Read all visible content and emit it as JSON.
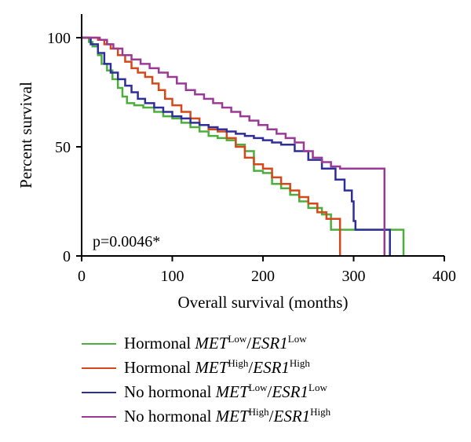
{
  "chart_data": {
    "type": "line",
    "subtype": "kaplan-meier-step",
    "ylabel": "Percent survival",
    "xlabel": "Overall survival (months)",
    "xlim": [
      0,
      400
    ],
    "ylim": [
      0,
      100
    ],
    "xticks": [
      "0",
      "100",
      "200",
      "300",
      "400"
    ],
    "yticks": [
      "0",
      "50",
      "100"
    ],
    "annotation": "p=0.0046*",
    "grid": false,
    "legend_position": "bottom",
    "series": [
      {
        "name": "Hormonal MET Low/ESR1 Low",
        "prefix": "Hormonal ",
        "gene1": "MET",
        "sup1": "Low",
        "sep": "/",
        "gene2": "ESR1",
        "sup2": "Low",
        "color": "#4caf3c",
        "points": [
          [
            0,
            100
          ],
          [
            8,
            98
          ],
          [
            12,
            96
          ],
          [
            18,
            92
          ],
          [
            22,
            88
          ],
          [
            28,
            85
          ],
          [
            34,
            81
          ],
          [
            40,
            77
          ],
          [
            45,
            73
          ],
          [
            50,
            70
          ],
          [
            58,
            69
          ],
          [
            68,
            68
          ],
          [
            80,
            66
          ],
          [
            90,
            64
          ],
          [
            100,
            63
          ],
          [
            110,
            61
          ],
          [
            120,
            59
          ],
          [
            130,
            57
          ],
          [
            140,
            55
          ],
          [
            150,
            54
          ],
          [
            160,
            53
          ],
          [
            170,
            51
          ],
          [
            180,
            48
          ],
          [
            190,
            39
          ],
          [
            200,
            38
          ],
          [
            210,
            33
          ],
          [
            220,
            31
          ],
          [
            230,
            28
          ],
          [
            240,
            25
          ],
          [
            250,
            22
          ],
          [
            265,
            19
          ],
          [
            275,
            12
          ],
          [
            290,
            12
          ],
          [
            300,
            12
          ],
          [
            310,
            12
          ],
          [
            330,
            12
          ],
          [
            345,
            12
          ],
          [
            355,
            12
          ],
          [
            355,
            0
          ]
        ]
      },
      {
        "name": "Hormonal MET High/ESR1 High",
        "prefix": "Hormonal ",
        "gene1": "MET",
        "sup1": "High",
        "sep": "/",
        "gene2": "ESR1",
        "sup2": "High",
        "color": "#d4481a",
        "points": [
          [
            0,
            100
          ],
          [
            12,
            100
          ],
          [
            18,
            99
          ],
          [
            25,
            97
          ],
          [
            32,
            95
          ],
          [
            40,
            92
          ],
          [
            48,
            89
          ],
          [
            55,
            86
          ],
          [
            62,
            84
          ],
          [
            70,
            82
          ],
          [
            78,
            79
          ],
          [
            85,
            76
          ],
          [
            92,
            72
          ],
          [
            100,
            69
          ],
          [
            110,
            66
          ],
          [
            120,
            63
          ],
          [
            130,
            60
          ],
          [
            140,
            58
          ],
          [
            150,
            57
          ],
          [
            160,
            54
          ],
          [
            170,
            50
          ],
          [
            180,
            45
          ],
          [
            190,
            42
          ],
          [
            200,
            40
          ],
          [
            210,
            36
          ],
          [
            220,
            33
          ],
          [
            230,
            30
          ],
          [
            240,
            27
          ],
          [
            250,
            24
          ],
          [
            260,
            20
          ],
          [
            270,
            17
          ],
          [
            280,
            17
          ],
          [
            285,
            17
          ],
          [
            285,
            0
          ]
        ]
      },
      {
        "name": "No hormonal MET Low/ESR1 Low",
        "prefix": "No hormonal ",
        "gene1": "MET",
        "sup1": "Low",
        "sep": "/",
        "gene2": "ESR1",
        "sup2": "Low",
        "color": "#2e2e9a",
        "points": [
          [
            0,
            100
          ],
          [
            10,
            97
          ],
          [
            18,
            93
          ],
          [
            25,
            88
          ],
          [
            32,
            84
          ],
          [
            40,
            81
          ],
          [
            48,
            78
          ],
          [
            55,
            75
          ],
          [
            62,
            72
          ],
          [
            70,
            70
          ],
          [
            80,
            68
          ],
          [
            90,
            66
          ],
          [
            100,
            64
          ],
          [
            110,
            63
          ],
          [
            120,
            61
          ],
          [
            130,
            60
          ],
          [
            140,
            59
          ],
          [
            150,
            58
          ],
          [
            160,
            57
          ],
          [
            170,
            56
          ],
          [
            180,
            55
          ],
          [
            190,
            54
          ],
          [
            200,
            53
          ],
          [
            210,
            52
          ],
          [
            220,
            51
          ],
          [
            235,
            48
          ],
          [
            250,
            44
          ],
          [
            265,
            40
          ],
          [
            280,
            35
          ],
          [
            290,
            30
          ],
          [
            298,
            25
          ],
          [
            300,
            16
          ],
          [
            302,
            12
          ],
          [
            325,
            12
          ],
          [
            340,
            12
          ],
          [
            340,
            0
          ]
        ]
      },
      {
        "name": "No hormonal MET High/ESR1 High",
        "prefix": "No hormonal ",
        "gene1": "MET",
        "sup1": "High",
        "sep": "/",
        "gene2": "ESR1",
        "sup2": "High",
        "color": "#9b3a96",
        "points": [
          [
            0,
            100
          ],
          [
            15,
            100
          ],
          [
            20,
            99
          ],
          [
            28,
            97
          ],
          [
            35,
            95
          ],
          [
            45,
            92
          ],
          [
            55,
            90
          ],
          [
            65,
            88
          ],
          [
            75,
            86
          ],
          [
            85,
            84
          ],
          [
            95,
            82
          ],
          [
            105,
            79
          ],
          [
            115,
            76
          ],
          [
            125,
            74
          ],
          [
            135,
            72
          ],
          [
            145,
            70
          ],
          [
            155,
            68
          ],
          [
            165,
            66
          ],
          [
            175,
            64
          ],
          [
            185,
            62
          ],
          [
            195,
            60
          ],
          [
            205,
            58
          ],
          [
            215,
            56
          ],
          [
            225,
            54
          ],
          [
            235,
            52
          ],
          [
            245,
            48
          ],
          [
            255,
            45
          ],
          [
            265,
            43
          ],
          [
            275,
            41
          ],
          [
            285,
            40
          ],
          [
            300,
            40
          ],
          [
            310,
            40
          ],
          [
            320,
            40
          ],
          [
            334,
            40
          ],
          [
            334,
            0
          ]
        ]
      }
    ]
  }
}
